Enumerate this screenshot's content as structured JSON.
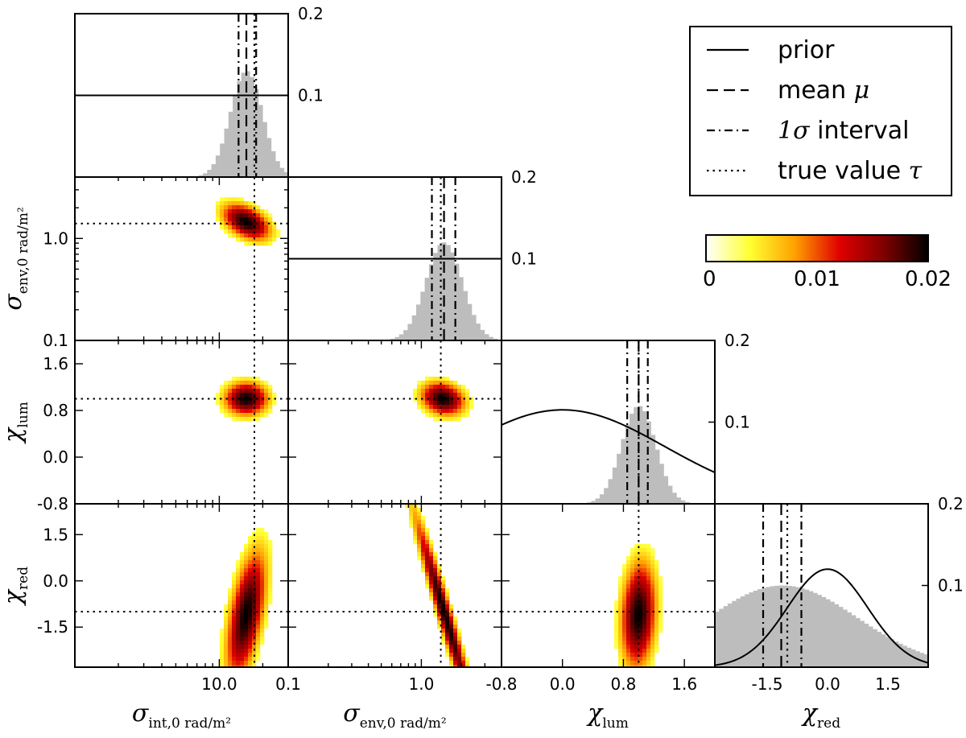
{
  "chart_data": {
    "type": "corner",
    "parameters": [
      {
        "key": "sint",
        "symbol": "σ",
        "subscript": "int,0 rad/m²",
        "scale": "log",
        "range": [
          1,
          30
        ],
        "true": 17.5
      },
      {
        "key": "senv",
        "symbol": "σ",
        "subscript": "env,0 rad/m²",
        "scale": "log",
        "range": [
          0.1,
          4
        ],
        "true": 1.4
      },
      {
        "key": "clum",
        "symbol": "χ",
        "subscript": "lum",
        "scale": "linear",
        "range": [
          -0.8,
          2.0
        ],
        "true": 1.0
      },
      {
        "key": "cred",
        "symbol": "χ",
        "subscript": "red",
        "scale": "linear",
        "range": [
          -2.8,
          2.5
        ],
        "true": -1.0
      }
    ],
    "tick_labels": {
      "sint_x": [
        "10.0"
      ],
      "senv_x": [
        "0.1",
        "1.0"
      ],
      "clum_x": [
        "-0.8",
        "0.0",
        "0.8",
        "1.6"
      ],
      "cred_x": [
        "-1.5",
        "0.0",
        "1.5"
      ],
      "senv_y": [
        "0.1",
        "1.0"
      ],
      "clum_y": [
        "-0.8",
        "0.0",
        "0.8",
        "1.6"
      ],
      "cred_y": [
        "-1.5",
        "0.0",
        "1.5"
      ]
    },
    "marginals": [
      {
        "param": "sint",
        "ylim": [
          0,
          0.2
        ],
        "yticks": [
          "0.1",
          "0.2"
        ],
        "prior": {
          "kind": "flat",
          "value": 0.1
        },
        "mean": 15.4,
        "interval": [
          13.6,
          18.0
        ],
        "true": 17.5,
        "hist_peak": 0.13,
        "hist_center": 15.4,
        "hist_width": 0.075
      },
      {
        "param": "senv",
        "ylim": [
          0,
          0.2
        ],
        "yticks": [
          "0.1",
          "0.2"
        ],
        "prior": {
          "kind": "flat",
          "value": 0.1
        },
        "mean": 1.48,
        "interval": [
          1.2,
          1.8
        ],
        "true": 1.4,
        "hist_peak": 0.12,
        "hist_center": 1.48,
        "hist_width": 0.085
      },
      {
        "param": "clum",
        "ylim": [
          0,
          0.2
        ],
        "yticks": [
          "0.1",
          "0.2"
        ],
        "prior": {
          "kind": "gaussian",
          "mu": 0.0,
          "sigma": 1.35,
          "peak": 0.115
        },
        "mean": 1.0,
        "interval": [
          0.85,
          1.12
        ],
        "true": 1.0,
        "hist_peak": 0.12,
        "hist_center": 1.0,
        "hist_width": 0.08
      },
      {
        "param": "cred",
        "ylim": [
          0,
          0.2
        ],
        "yticks": [
          "0.1",
          "0.2"
        ],
        "prior": {
          "kind": "gaussian",
          "mu": 0.0,
          "sigma": 1.0,
          "peak": 0.12
        },
        "mean": -1.15,
        "interval": [
          -1.6,
          -0.65
        ],
        "true": -1.0,
        "hist_peak": 0.1,
        "hist_center": -1.12,
        "hist_width": 0.35
      }
    ],
    "joints": [
      {
        "row": 1,
        "col": 0,
        "cx": 15.4,
        "cy": 1.45,
        "sx": 0.11,
        "sy": 0.11,
        "rho": -0.45
      },
      {
        "row": 2,
        "col": 0,
        "cx": 15.4,
        "cy": 1.0,
        "sx": 0.1,
        "sy": 0.1,
        "rho": 0.0
      },
      {
        "row": 2,
        "col": 1,
        "cx": 1.45,
        "cy": 1.0,
        "sx": 0.1,
        "sy": 0.1,
        "rho": -0.2
      },
      {
        "row": 3,
        "col": 0,
        "cx": 15.4,
        "cy": -1.1,
        "sx": 0.09,
        "sy": 0.38,
        "rho": 0.55
      },
      {
        "row": 3,
        "col": 1,
        "cx": 1.5,
        "cy": -1.1,
        "sx": 0.14,
        "sy": 0.6,
        "rho": -0.97
      },
      {
        "row": 3,
        "col": 2,
        "cx": 1.0,
        "cy": -1.1,
        "sx": 0.08,
        "sy": 0.32,
        "rho": 0.15
      }
    ],
    "legend": {
      "placement": "top-right",
      "entries": [
        {
          "style": "solid",
          "label": "prior"
        },
        {
          "style": "dashed",
          "label": "mean ",
          "math": "μ"
        },
        {
          "style": "dashdot",
          "math": "1σ",
          "label": " interval"
        },
        {
          "style": "dotted",
          "label": "true value ",
          "math": "τ"
        }
      ]
    },
    "colorbar": {
      "colormap": [
        "#ffffff",
        "#ffff30",
        "#ffa000",
        "#e00000",
        "#800000",
        "#000000"
      ],
      "ticks": [
        "0",
        "0.01",
        "0.02"
      ],
      "range": [
        0,
        0.02
      ]
    },
    "hist_color": "#bdbdbd",
    "grid": false
  }
}
